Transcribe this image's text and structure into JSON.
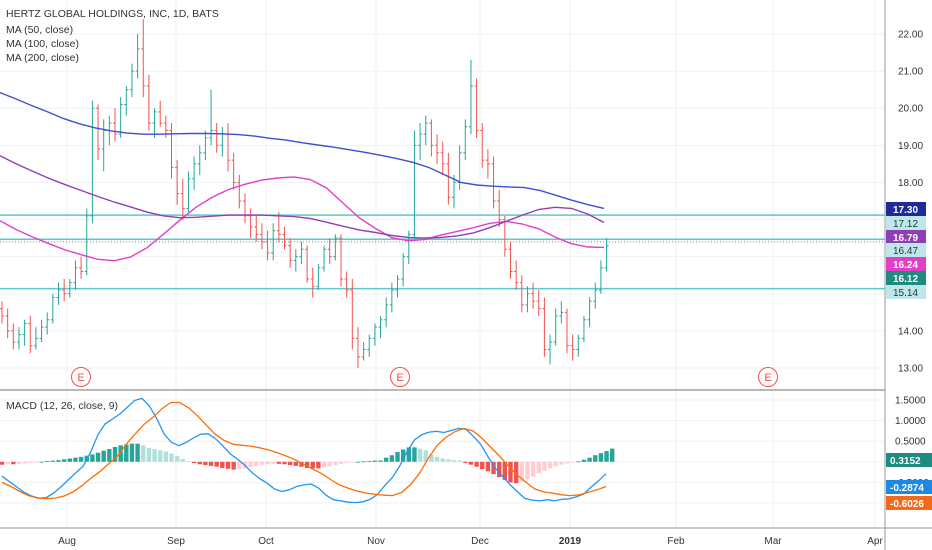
{
  "legend": {
    "title": "HERTZ GLOBAL HOLDINGS, INC, 1D, BATS",
    "ma50": "MA (50, close)",
    "ma100": "MA (100, close)",
    "ma200": "MA (200, close)",
    "macd": "MACD (12, 26, close, 9)"
  },
  "colors": {
    "up": "#26a69a",
    "down": "#ef5350",
    "ma50": "#e040c8",
    "ma100": "#8e3fb5",
    "ma200": "#3f4fcf",
    "macd": "#2196f3",
    "signal": "#ff6d00",
    "hline": "#5bc8cf",
    "earnings": "#ef5350"
  },
  "chart_data": [
    {
      "type": "ohlc",
      "title": "HERTZ GLOBAL HOLDINGS, INC, 1D, BATS",
      "ylim": [
        12.78,
        22.55
      ],
      "y_ticks": [
        "22.00",
        "21.00",
        "20.00",
        "19.00",
        "18.00",
        "14.00",
        "13.00"
      ],
      "x_ticks": [
        "Aug",
        "Sep",
        "Oct",
        "Nov",
        "Dec",
        "2019",
        "Feb",
        "Mar",
        "Apr"
      ],
      "price_tags": [
        "17.30",
        "17.12",
        "16.79",
        "16.47",
        "16.24",
        "16.12",
        "15.14"
      ],
      "horizontal_lines": [
        17.12,
        16.47,
        15.14
      ],
      "dotted_line": 16.4,
      "earnings_markers": [
        "E",
        "E",
        "E"
      ],
      "ohlc": [
        [
          14.6,
          14.8,
          14.2,
          14.4
        ],
        [
          14.4,
          14.6,
          13.8,
          14.0
        ],
        [
          14.0,
          14.2,
          13.5,
          13.7
        ],
        [
          13.7,
          14.1,
          13.5,
          13.9
        ],
        [
          13.9,
          14.3,
          13.6,
          14.2
        ],
        [
          14.2,
          14.4,
          13.4,
          13.6
        ],
        [
          13.6,
          14.1,
          13.5,
          13.8
        ],
        [
          13.8,
          14.3,
          13.7,
          14.1
        ],
        [
          14.1,
          14.5,
          13.9,
          14.3
        ],
        [
          14.3,
          15.0,
          14.2,
          14.9
        ],
        [
          14.9,
          15.3,
          14.7,
          15.1
        ],
        [
          15.1,
          15.4,
          14.8,
          15.0
        ],
        [
          15.0,
          15.4,
          14.9,
          15.3
        ],
        [
          15.3,
          15.9,
          15.1,
          15.7
        ],
        [
          15.7,
          16.0,
          15.4,
          15.6
        ],
        [
          15.6,
          17.3,
          15.5,
          17.1
        ],
        [
          17.1,
          20.2,
          16.9,
          20.0
        ],
        [
          20.0,
          20.1,
          18.6,
          18.9
        ],
        [
          18.9,
          19.7,
          18.3,
          19.4
        ],
        [
          19.4,
          19.8,
          19.0,
          19.6
        ],
        [
          19.6,
          20.0,
          19.1,
          19.3
        ],
        [
          19.3,
          20.3,
          19.2,
          20.1
        ],
        [
          20.1,
          20.6,
          19.8,
          20.5
        ],
        [
          20.5,
          21.2,
          20.3,
          21.0
        ],
        [
          21.0,
          22.0,
          20.8,
          21.6
        ],
        [
          21.6,
          22.4,
          20.3,
          20.6
        ],
        [
          20.6,
          20.9,
          19.4,
          19.6
        ],
        [
          19.6,
          20.0,
          19.2,
          19.9
        ],
        [
          19.9,
          20.2,
          19.5,
          19.6
        ],
        [
          19.6,
          19.8,
          19.2,
          19.4
        ],
        [
          19.4,
          19.6,
          18.1,
          18.4
        ],
        [
          18.4,
          18.6,
          17.4,
          17.7
        ],
        [
          17.7,
          18.1,
          17.0,
          17.3
        ],
        [
          17.3,
          18.3,
          17.2,
          18.1
        ],
        [
          18.1,
          18.7,
          17.8,
          18.5
        ],
        [
          18.5,
          19.0,
          18.2,
          18.8
        ],
        [
          18.8,
          19.4,
          18.6,
          19.2
        ],
        [
          19.2,
          20.5,
          19.0,
          19.4
        ],
        [
          19.4,
          19.6,
          18.8,
          19.0
        ],
        [
          19.0,
          19.5,
          18.7,
          19.3
        ],
        [
          19.3,
          19.6,
          18.3,
          18.6
        ],
        [
          18.6,
          18.8,
          17.8,
          18.0
        ],
        [
          18.0,
          18.2,
          17.3,
          17.5
        ],
        [
          17.5,
          17.7,
          16.9,
          17.1
        ],
        [
          17.1,
          17.3,
          16.5,
          16.8
        ],
        [
          16.8,
          17.1,
          16.4,
          16.6
        ],
        [
          16.6,
          16.9,
          16.2,
          16.4
        ],
        [
          16.4,
          16.7,
          15.9,
          16.1
        ],
        [
          16.1,
          16.9,
          15.9,
          16.7
        ],
        [
          16.7,
          17.2,
          16.4,
          16.6
        ],
        [
          16.6,
          16.8,
          16.2,
          16.3
        ],
        [
          16.3,
          16.5,
          15.7,
          15.9
        ],
        [
          15.9,
          16.2,
          15.6,
          16.0
        ],
        [
          16.0,
          16.4,
          15.8,
          16.2
        ],
        [
          16.2,
          16.3,
          15.3,
          15.4
        ],
        [
          15.4,
          15.7,
          14.9,
          15.2
        ],
        [
          15.2,
          15.8,
          15.1,
          15.7
        ],
        [
          15.7,
          16.3,
          15.6,
          16.2
        ],
        [
          16.2,
          16.5,
          15.8,
          16.0
        ],
        [
          16.0,
          16.6,
          15.9,
          16.5
        ],
        [
          16.5,
          16.6,
          15.2,
          15.4
        ],
        [
          15.4,
          15.6,
          14.9,
          15.1
        ],
        [
          15.1,
          15.4,
          13.5,
          13.8
        ],
        [
          13.8,
          14.1,
          13.0,
          13.3
        ],
        [
          13.3,
          13.7,
          13.2,
          13.5
        ],
        [
          13.5,
          13.9,
          13.3,
          13.8
        ],
        [
          13.8,
          14.2,
          13.6,
          14.1
        ],
        [
          14.1,
          14.4,
          13.8,
          14.3
        ],
        [
          14.3,
          14.9,
          14.1,
          14.7
        ],
        [
          14.7,
          15.3,
          14.5,
          15.1
        ],
        [
          15.1,
          15.5,
          14.9,
          15.4
        ],
        [
          15.4,
          16.1,
          15.2,
          16.0
        ],
        [
          16.0,
          16.7,
          15.8,
          16.6
        ],
        [
          16.6,
          19.4,
          16.5,
          19.0
        ],
        [
          19.0,
          19.6,
          18.6,
          19.3
        ],
        [
          19.3,
          19.8,
          19.0,
          19.6
        ],
        [
          19.6,
          19.7,
          18.7,
          19.0
        ],
        [
          19.0,
          19.3,
          18.5,
          18.8
        ],
        [
          18.8,
          19.1,
          18.2,
          18.5
        ],
        [
          18.5,
          18.8,
          17.4,
          17.6
        ],
        [
          17.6,
          18.2,
          17.3,
          18.0
        ],
        [
          18.0,
          19.0,
          17.8,
          18.8
        ],
        [
          18.8,
          19.7,
          18.6,
          19.5
        ],
        [
          19.5,
          21.3,
          19.3,
          20.6
        ],
        [
          20.6,
          20.8,
          19.2,
          19.4
        ],
        [
          19.4,
          19.6,
          18.4,
          18.6
        ],
        [
          18.6,
          18.9,
          18.1,
          18.5
        ],
        [
          18.5,
          18.7,
          17.3,
          17.5
        ],
        [
          17.5,
          17.8,
          16.8,
          17.0
        ],
        [
          17.0,
          17.1,
          16.0,
          16.2
        ],
        [
          16.2,
          16.4,
          15.4,
          15.6
        ],
        [
          15.6,
          15.9,
          15.1,
          15.3
        ],
        [
          15.3,
          15.5,
          14.5,
          14.7
        ],
        [
          14.7,
          15.2,
          14.5,
          15.0
        ],
        [
          15.0,
          15.3,
          14.6,
          14.8
        ],
        [
          14.8,
          15.1,
          14.4,
          14.6
        ],
        [
          14.6,
          14.9,
          13.3,
          13.5
        ],
        [
          13.5,
          13.9,
          13.1,
          13.7
        ],
        [
          13.7,
          14.6,
          13.6,
          14.4
        ],
        [
          14.4,
          14.8,
          14.2,
          14.5
        ],
        [
          14.5,
          14.6,
          13.4,
          13.6
        ],
        [
          13.6,
          13.9,
          13.2,
          13.5
        ],
        [
          13.5,
          13.9,
          13.3,
          13.8
        ],
        [
          13.8,
          14.4,
          13.7,
          14.3
        ],
        [
          14.3,
          14.9,
          14.1,
          14.8
        ],
        [
          14.8,
          15.3,
          14.6,
          15.1
        ],
        [
          15.1,
          15.9,
          15.0,
          15.7
        ],
        [
          15.7,
          16.5,
          15.6,
          16.3
        ]
      ],
      "series": [
        {
          "name": "MA (50, close)",
          "values": [
            16.97,
            16.73,
            16.53,
            16.35,
            16.18,
            16.05,
            15.93,
            15.89,
            15.99,
            16.24,
            16.6,
            16.98,
            17.33,
            17.6,
            17.81,
            17.95,
            18.06,
            18.12,
            18.15,
            18.08,
            17.85,
            17.45,
            17.05,
            16.76,
            16.51,
            16.43,
            16.46,
            16.58,
            16.68,
            16.78,
            16.9,
            16.95,
            16.88,
            16.75,
            16.53,
            16.35,
            16.26,
            16.25
          ]
        },
        {
          "name": "MA (100, close)",
          "values": [
            18.72,
            18.5,
            18.3,
            18.11,
            17.94,
            17.78,
            17.62,
            17.47,
            17.34,
            17.2,
            17.1,
            17.05,
            17.06,
            17.09,
            17.12,
            17.12,
            17.12,
            17.1,
            17.08,
            17.03,
            16.93,
            16.82,
            16.72,
            16.65,
            16.57,
            16.52,
            16.5,
            16.52,
            16.56,
            16.64,
            16.78,
            16.95,
            17.12,
            17.27,
            17.33,
            17.3,
            17.15,
            16.92
          ]
        },
        {
          "name": "MA (200, close)",
          "values": [
            20.42,
            20.25,
            20.07,
            19.9,
            19.72,
            19.58,
            19.47,
            19.39,
            19.33,
            19.3,
            19.3,
            19.31,
            19.32,
            19.32,
            19.31,
            19.29,
            19.25,
            19.19,
            19.14,
            19.07,
            19.01,
            18.95,
            18.88,
            18.81,
            18.73,
            18.64,
            18.54,
            18.4,
            18.2,
            18.0,
            17.93,
            17.9,
            17.88,
            17.86,
            17.78,
            17.65,
            17.52,
            17.4,
            17.3
          ]
        }
      ]
    },
    {
      "type": "macd",
      "title": "MACD (12, 26, close, 9)",
      "ylim": [
        -1.27,
        1.78
      ],
      "y_ticks": [
        "1.5000",
        "1.0000",
        "0.5000",
        "0.0000",
        "-0.5000",
        "-1.0000"
      ],
      "value_tags": [
        "0.3152",
        "-0.2874",
        "-0.6026"
      ],
      "series": [
        {
          "name": "MACD",
          "values": [
            -0.35,
            -0.48,
            -0.61,
            -0.74,
            -0.83,
            -0.88,
            -0.87,
            -0.76,
            -0.61,
            -0.44,
            -0.27,
            -0.11,
            0.22,
            0.65,
            0.92,
            1.04,
            1.16,
            1.32,
            1.49,
            1.54,
            1.36,
            1.05,
            0.68,
            0.47,
            0.39,
            0.47,
            0.58,
            0.67,
            0.68,
            0.56,
            0.38,
            0.19,
            0.06,
            -0.09,
            -0.27,
            -0.41,
            -0.52,
            -0.66,
            -0.72,
            -0.68,
            -0.6,
            -0.56,
            -0.54,
            -0.64,
            -0.81,
            -0.92,
            -0.95,
            -0.98,
            -0.99,
            -0.97,
            -0.91,
            -0.79,
            -0.57,
            -0.38,
            -0.1,
            0.25,
            0.53,
            0.66,
            0.72,
            0.74,
            0.71,
            0.76,
            0.81,
            0.79,
            0.62,
            0.42,
            0.12,
            -0.16,
            -0.36,
            -0.56,
            -0.73,
            -0.89,
            -0.93,
            -0.95,
            -0.92,
            -0.95,
            -0.91,
            -0.9,
            -0.85,
            -0.78,
            -0.61,
            -0.46,
            -0.29
          ]
        },
        {
          "name": "Signal",
          "values": [
            -0.5,
            -0.6,
            -0.72,
            -0.82,
            -0.88,
            -0.89,
            -0.88,
            -0.83,
            -0.73,
            -0.58,
            -0.4,
            -0.24,
            -0.05,
            0.14,
            0.43,
            0.68,
            0.91,
            1.08,
            1.29,
            1.44,
            1.44,
            1.31,
            1.12,
            0.89,
            0.67,
            0.52,
            0.43,
            0.4,
            0.38,
            0.34,
            0.29,
            0.22,
            0.14,
            0.05,
            -0.07,
            -0.18,
            -0.29,
            -0.43,
            -0.56,
            -0.64,
            -0.71,
            -0.76,
            -0.79,
            -0.81,
            -0.82,
            -0.74,
            -0.55,
            -0.28,
            0.09,
            0.4,
            0.6,
            0.73,
            0.81,
            0.75,
            0.58,
            0.36,
            0.14,
            -0.1,
            -0.32,
            -0.5,
            -0.66,
            -0.73,
            -0.76,
            -0.8,
            -0.82,
            -0.8,
            -0.74,
            -0.68,
            -0.6
          ]
        }
      ]
    }
  ]
}
